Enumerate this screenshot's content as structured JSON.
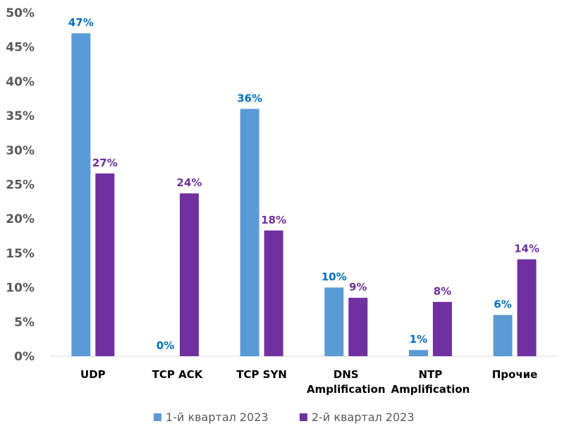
{
  "chart_data": {
    "type": "bar",
    "title": "",
    "xlabel": "",
    "ylabel": "",
    "ylim": [
      0,
      50
    ],
    "yticks": [
      "0%",
      "5%",
      "10%",
      "15%",
      "20%",
      "25%",
      "30%",
      "35%",
      "40%",
      "45%",
      "50%"
    ],
    "categories": [
      [
        "UDP"
      ],
      [
        "TCP ACK"
      ],
      [
        "TCP SYN"
      ],
      [
        "DNS",
        "Amplification"
      ],
      [
        "NTP",
        "Amplification"
      ],
      [
        "Прочие"
      ]
    ],
    "grid": false,
    "legend_position": "bottom",
    "series": [
      {
        "name": "1-й квартал 2023",
        "color": "#5b9bd5",
        "label_color": "#0070c0",
        "values": [
          47,
          0,
          36,
          10,
          0.9,
          6
        ],
        "labels": [
          "47%",
          "0%",
          "36%",
          "10%",
          "1%",
          "6%"
        ]
      },
      {
        "name": "2-й квартал 2023",
        "color": "#7030a0",
        "label_color": "#7030a0",
        "values": [
          26.6,
          23.7,
          18.3,
          8.5,
          7.9,
          14.1
        ],
        "labels": [
          "27%",
          "24%",
          "18%",
          "9%",
          "8%",
          "14%"
        ]
      }
    ]
  }
}
